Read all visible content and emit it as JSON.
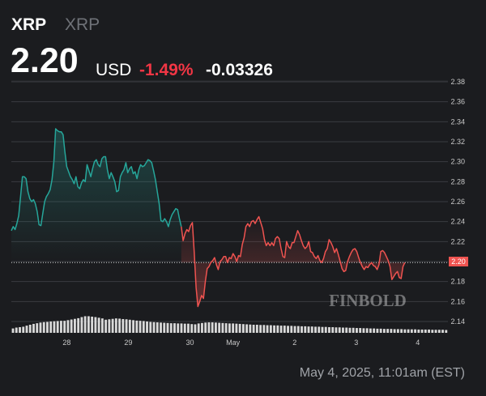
{
  "header": {
    "symbol": "XRP",
    "name": "XRP",
    "price": "2.20",
    "currency": "USD",
    "change_pct": "-1.49%",
    "change_abs": "-0.03326"
  },
  "timestamp": "May 4, 2025, 11:01am (EST)",
  "watermark": "FINBOLD",
  "colors": {
    "up": "#26a69a",
    "down": "#ef5350",
    "background": "#1b1c1f",
    "volume": "#d9d9d9"
  },
  "chart_data": {
    "type": "line",
    "title": "",
    "xlabel": "",
    "ylabel": "",
    "x_ticks": [
      {
        "label": "28",
        "x": 0.9
      },
      {
        "label": "29",
        "x": 1.9
      },
      {
        "label": "30",
        "x": 2.9
      },
      {
        "label": "May",
        "x": 3.6
      },
      {
        "label": "2",
        "x": 4.6
      },
      {
        "label": "3",
        "x": 5.6
      },
      {
        "label": "4",
        "x": 6.6
      }
    ],
    "y_ticks": [
      "2.38",
      "2.36",
      "2.34",
      "2.32",
      "2.30",
      "2.28",
      "2.26",
      "2.24",
      "2.22",
      "2.20",
      "2.18",
      "2.16",
      "2.14"
    ],
    "ylim": [
      2.14,
      2.38
    ],
    "xlim": [
      0,
      7.09
    ],
    "baseline": 2.199,
    "current_price_label": "2.20",
    "grid": true,
    "series": [
      {
        "values": [
          [
            0.0,
            2.231
          ],
          [
            0.03,
            2.235
          ],
          [
            0.06,
            2.232
          ],
          [
            0.09,
            2.238
          ],
          [
            0.12,
            2.246
          ],
          [
            0.15,
            2.265
          ],
          [
            0.18,
            2.285
          ],
          [
            0.21,
            2.285
          ],
          [
            0.24,
            2.283
          ],
          [
            0.27,
            2.27
          ],
          [
            0.3,
            2.263
          ],
          [
            0.33,
            2.26
          ],
          [
            0.36,
            2.262
          ],
          [
            0.39,
            2.258
          ],
          [
            0.42,
            2.25
          ],
          [
            0.45,
            2.237
          ],
          [
            0.48,
            2.236
          ],
          [
            0.51,
            2.248
          ],
          [
            0.54,
            2.26
          ],
          [
            0.57,
            2.265
          ],
          [
            0.6,
            2.268
          ],
          [
            0.63,
            2.272
          ],
          [
            0.66,
            2.282
          ],
          [
            0.69,
            2.3
          ],
          [
            0.72,
            2.333
          ],
          [
            0.75,
            2.331
          ],
          [
            0.78,
            2.33
          ],
          [
            0.81,
            2.33
          ],
          [
            0.84,
            2.327
          ],
          [
            0.87,
            2.31
          ],
          [
            0.9,
            2.295
          ],
          [
            0.93,
            2.29
          ],
          [
            0.96,
            2.285
          ],
          [
            0.99,
            2.282
          ],
          [
            1.02,
            2.278
          ],
          [
            1.05,
            2.285
          ],
          [
            1.08,
            2.275
          ],
          [
            1.11,
            2.273
          ],
          [
            1.14,
            2.279
          ],
          [
            1.17,
            2.282
          ],
          [
            1.2,
            2.28
          ],
          [
            1.23,
            2.297
          ],
          [
            1.26,
            2.291
          ],
          [
            1.29,
            2.285
          ],
          [
            1.32,
            2.293
          ],
          [
            1.35,
            2.3
          ],
          [
            1.38,
            2.302
          ],
          [
            1.41,
            2.297
          ],
          [
            1.44,
            2.295
          ],
          [
            1.47,
            2.303
          ],
          [
            1.5,
            2.305
          ],
          [
            1.53,
            2.305
          ],
          [
            1.56,
            2.292
          ],
          [
            1.59,
            2.283
          ],
          [
            1.62,
            2.289
          ],
          [
            1.65,
            2.285
          ],
          [
            1.68,
            2.28
          ],
          [
            1.71,
            2.27
          ],
          [
            1.74,
            2.271
          ],
          [
            1.77,
            2.285
          ],
          [
            1.8,
            2.289
          ],
          [
            1.83,
            2.292
          ],
          [
            1.86,
            2.299
          ],
          [
            1.89,
            2.289
          ],
          [
            1.92,
            2.293
          ],
          [
            1.95,
            2.295
          ],
          [
            1.98,
            2.288
          ],
          [
            2.01,
            2.29
          ],
          [
            2.04,
            2.283
          ],
          [
            2.07,
            2.292
          ],
          [
            2.1,
            2.297
          ],
          [
            2.13,
            2.295
          ],
          [
            2.16,
            2.296
          ],
          [
            2.19,
            2.299
          ],
          [
            2.22,
            2.302
          ],
          [
            2.25,
            2.301
          ],
          [
            2.28,
            2.299
          ],
          [
            2.31,
            2.291
          ],
          [
            2.34,
            2.282
          ],
          [
            2.37,
            2.27
          ],
          [
            2.4,
            2.258
          ],
          [
            2.43,
            2.241
          ],
          [
            2.46,
            2.24
          ],
          [
            2.49,
            2.243
          ],
          [
            2.52,
            2.24
          ],
          [
            2.55,
            2.235
          ],
          [
            2.58,
            2.242
          ],
          [
            2.61,
            2.247
          ],
          [
            2.64,
            2.25
          ],
          [
            2.67,
            2.253
          ],
          [
            2.7,
            2.252
          ],
          [
            2.73,
            2.243
          ],
          [
            2.76,
            2.235
          ]
        ]
      },
      {
        "values": [
          [
            2.76,
            2.235
          ],
          [
            2.79,
            2.221
          ],
          [
            2.82,
            2.228
          ],
          [
            2.85,
            2.232
          ],
          [
            2.88,
            2.23
          ],
          [
            2.91,
            2.236
          ],
          [
            2.94,
            2.239
          ],
          [
            2.97,
            2.209
          ],
          [
            3.0,
            2.174
          ],
          [
            3.03,
            2.155
          ],
          [
            3.06,
            2.16
          ],
          [
            3.09,
            2.166
          ],
          [
            3.12,
            2.163
          ],
          [
            3.15,
            2.18
          ],
          [
            3.18,
            2.193
          ],
          [
            3.21,
            2.195
          ],
          [
            3.24,
            2.199
          ],
          [
            3.27,
            2.201
          ],
          [
            3.3,
            2.204
          ],
          [
            3.33,
            2.197
          ],
          [
            3.36,
            2.192
          ],
          [
            3.39,
            2.2
          ],
          [
            3.42,
            2.202
          ],
          [
            3.45,
            2.205
          ],
          [
            3.48,
            2.205
          ],
          [
            3.51,
            2.199
          ],
          [
            3.54,
            2.204
          ],
          [
            3.57,
            2.203
          ],
          [
            3.6,
            2.208
          ],
          [
            3.63,
            2.205
          ],
          [
            3.66,
            2.2
          ],
          [
            3.69,
            2.206
          ],
          [
            3.72,
            2.205
          ],
          [
            3.75,
            2.217
          ],
          [
            3.78,
            2.224
          ],
          [
            3.81,
            2.235
          ],
          [
            3.84,
            2.238
          ],
          [
            3.87,
            2.235
          ],
          [
            3.9,
            2.24
          ],
          [
            3.93,
            2.241
          ],
          [
            3.96,
            2.238
          ],
          [
            3.99,
            2.242
          ],
          [
            4.02,
            2.245
          ],
          [
            4.05,
            2.239
          ],
          [
            4.08,
            2.233
          ],
          [
            4.11,
            2.222
          ],
          [
            4.14,
            2.216
          ],
          [
            4.17,
            2.219
          ],
          [
            4.2,
            2.216
          ],
          [
            4.23,
            2.219
          ],
          [
            4.26,
            2.216
          ],
          [
            4.29,
            2.223
          ],
          [
            4.32,
            2.225
          ],
          [
            4.35,
            2.223
          ],
          [
            4.38,
            2.213
          ],
          [
            4.41,
            2.205
          ],
          [
            4.44,
            2.204
          ],
          [
            4.47,
            2.22
          ],
          [
            4.5,
            2.215
          ],
          [
            4.53,
            2.213
          ],
          [
            4.56,
            2.219
          ],
          [
            4.59,
            2.219
          ],
          [
            4.62,
            2.225
          ],
          [
            4.65,
            2.231
          ],
          [
            4.68,
            2.227
          ],
          [
            4.71,
            2.221
          ],
          [
            4.74,
            2.216
          ],
          [
            4.77,
            2.213
          ],
          [
            4.8,
            2.215
          ],
          [
            4.83,
            2.22
          ],
          [
            4.86,
            2.21
          ],
          [
            4.89,
            2.209
          ],
          [
            4.92,
            2.205
          ],
          [
            4.95,
            2.203
          ],
          [
            4.98,
            2.206
          ],
          [
            5.01,
            2.201
          ],
          [
            5.04,
            2.199
          ],
          [
            5.07,
            2.203
          ],
          [
            5.1,
            2.21
          ],
          [
            5.13,
            2.213
          ],
          [
            5.16,
            2.222
          ],
          [
            5.19,
            2.219
          ],
          [
            5.22,
            2.215
          ],
          [
            5.25,
            2.209
          ],
          [
            5.28,
            2.213
          ],
          [
            5.31,
            2.207
          ],
          [
            5.34,
            2.2
          ],
          [
            5.37,
            2.193
          ],
          [
            5.4,
            2.19
          ],
          [
            5.43,
            2.191
          ],
          [
            5.46,
            2.2
          ],
          [
            5.49,
            2.205
          ],
          [
            5.52,
            2.209
          ],
          [
            5.55,
            2.212
          ],
          [
            5.58,
            2.213
          ],
          [
            5.61,
            2.21
          ],
          [
            5.64,
            2.204
          ],
          [
            5.67,
            2.199
          ],
          [
            5.7,
            2.195
          ],
          [
            5.73,
            2.192
          ],
          [
            5.76,
            2.195
          ],
          [
            5.79,
            2.194
          ],
          [
            5.82,
            2.197
          ],
          [
            5.85,
            2.199
          ],
          [
            5.88,
            2.196
          ],
          [
            5.91,
            2.195
          ],
          [
            5.94,
            2.192
          ],
          [
            5.97,
            2.197
          ],
          [
            6.0,
            2.21
          ],
          [
            6.03,
            2.211
          ],
          [
            6.06,
            2.209
          ],
          [
            6.09,
            2.205
          ],
          [
            6.12,
            2.201
          ],
          [
            6.15,
            2.195
          ],
          [
            6.18,
            2.182
          ],
          [
            6.21,
            2.185
          ],
          [
            6.24,
            2.188
          ],
          [
            6.27,
            2.19
          ],
          [
            6.3,
            2.184
          ],
          [
            6.33,
            2.183
          ],
          [
            6.36,
            2.195
          ],
          [
            6.39,
            2.199
          ]
        ]
      }
    ],
    "volume": [
      0.2,
      0.24,
      0.26,
      0.28,
      0.33,
      0.37,
      0.41,
      0.44,
      0.47,
      0.49,
      0.5,
      0.52,
      0.53,
      0.54,
      0.55,
      0.55,
      0.58,
      0.61,
      0.64,
      0.67,
      0.72,
      0.76,
      0.76,
      0.74,
      0.72,
      0.69,
      0.66,
      0.6,
      0.62,
      0.64,
      0.66,
      0.65,
      0.63,
      0.62,
      0.6,
      0.58,
      0.56,
      0.55,
      0.54,
      0.52,
      0.5,
      0.49,
      0.48,
      0.47,
      0.46,
      0.45,
      0.44,
      0.44,
      0.43,
      0.43,
      0.42,
      0.42,
      0.4,
      0.39,
      0.43,
      0.45,
      0.47,
      0.48,
      0.48,
      0.47,
      0.46,
      0.45,
      0.44,
      0.43,
      0.43,
      0.42,
      0.41,
      0.4,
      0.39,
      0.38,
      0.37,
      0.37,
      0.36,
      0.36,
      0.35,
      0.35,
      0.34,
      0.34,
      0.33,
      0.33,
      0.32,
      0.32,
      0.31,
      0.31,
      0.3,
      0.3,
      0.29,
      0.29,
      0.28,
      0.28,
      0.27,
      0.27,
      0.26,
      0.26,
      0.25,
      0.25,
      0.24,
      0.24,
      0.23,
      0.23,
      0.22,
      0.22,
      0.21,
      0.21,
      0.2,
      0.2,
      0.19,
      0.19,
      0.18,
      0.18,
      0.18,
      0.17,
      0.17,
      0.17,
      0.16,
      0.16,
      0.16,
      0.16,
      0.15,
      0.15,
      0.15,
      0.15,
      0.14,
      0.14,
      0.14,
      0.14,
      0.13
    ]
  }
}
